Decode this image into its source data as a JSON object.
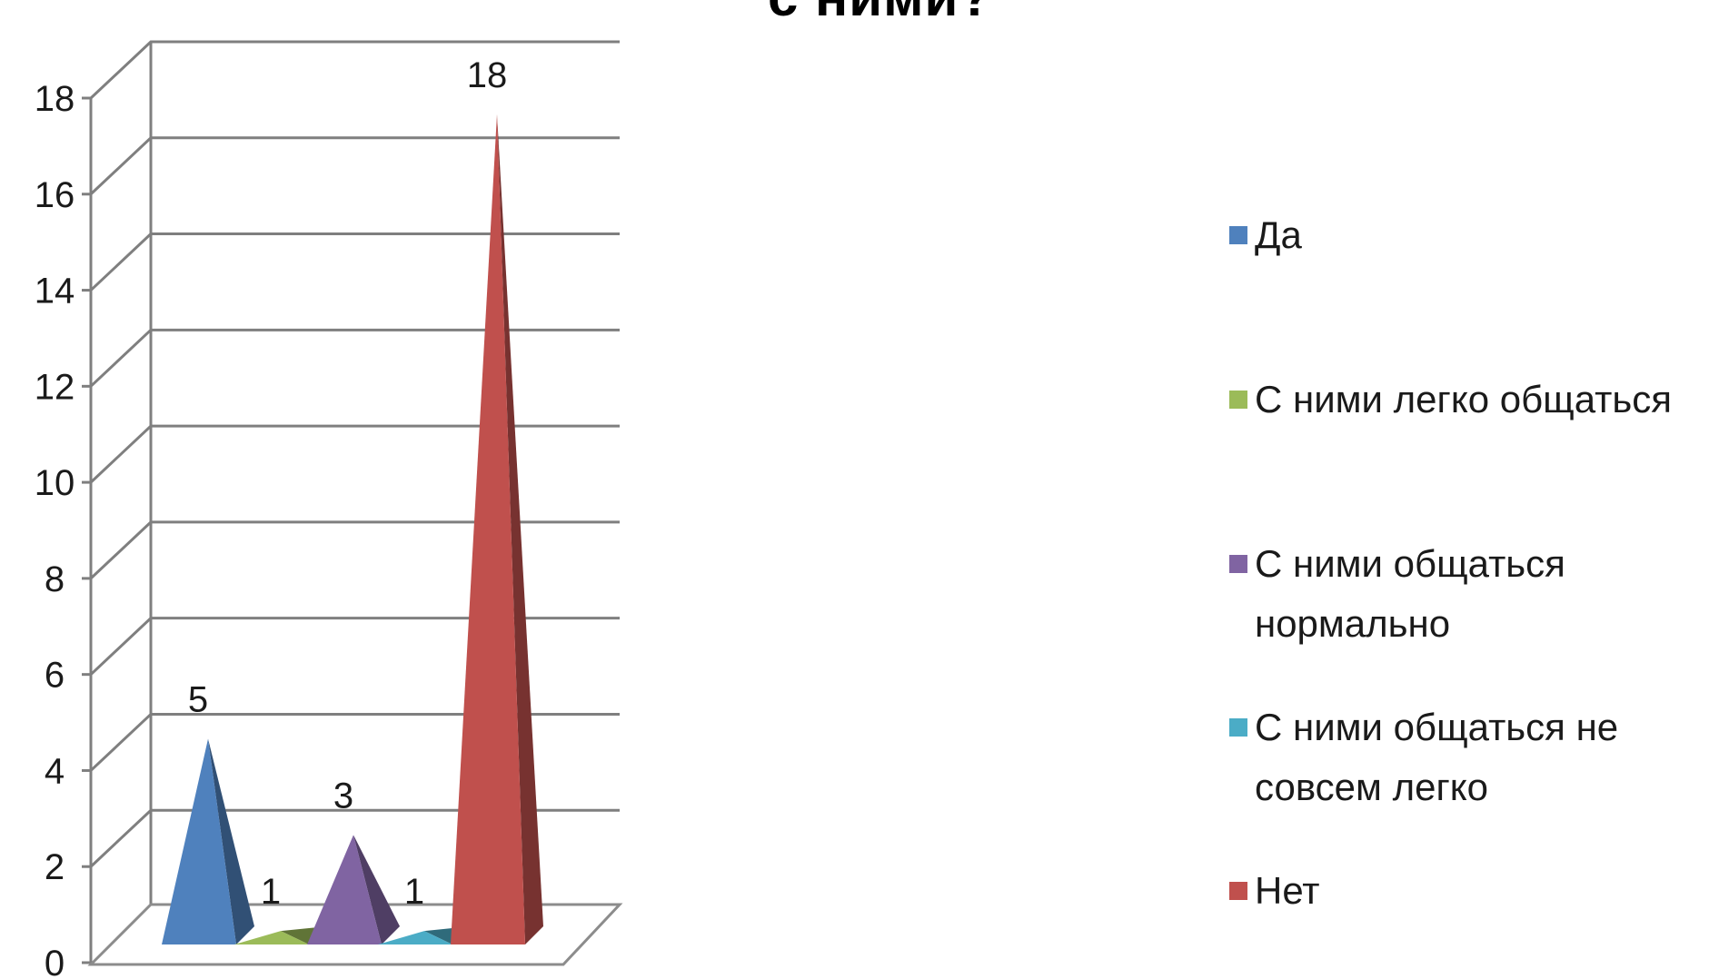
{
  "title": "с ними?",
  "chart_data": {
    "type": "bar",
    "style": "3d-pyramid",
    "categories": [
      "Да",
      "С ними легко общаться",
      "С ними общаться нормально",
      "С ними общаться не совсем легко",
      "Нет"
    ],
    "values": [
      5,
      1,
      3,
      1,
      18
    ],
    "colors": [
      "#4f81bd",
      "#9bbb59",
      "#8064a2",
      "#4bacc6",
      "#c0504d"
    ],
    "ylim": [
      0,
      18
    ],
    "yticks": [
      "0",
      "2",
      "4",
      "6",
      "8",
      "10",
      "12",
      "14",
      "16",
      "18"
    ],
    "grid": true,
    "legend_position": "right",
    "legend": [
      {
        "label": "Да",
        "color": "#4f81bd"
      },
      {
        "label": "С ними легко общаться",
        "color": "#9bbb59"
      },
      {
        "label": "С ними общаться нормально",
        "color": "#8064a2"
      },
      {
        "label": "С ними общаться не совсем легко",
        "color": "#4bacc6"
      },
      {
        "label": "Нет",
        "color": "#c0504d"
      }
    ]
  }
}
